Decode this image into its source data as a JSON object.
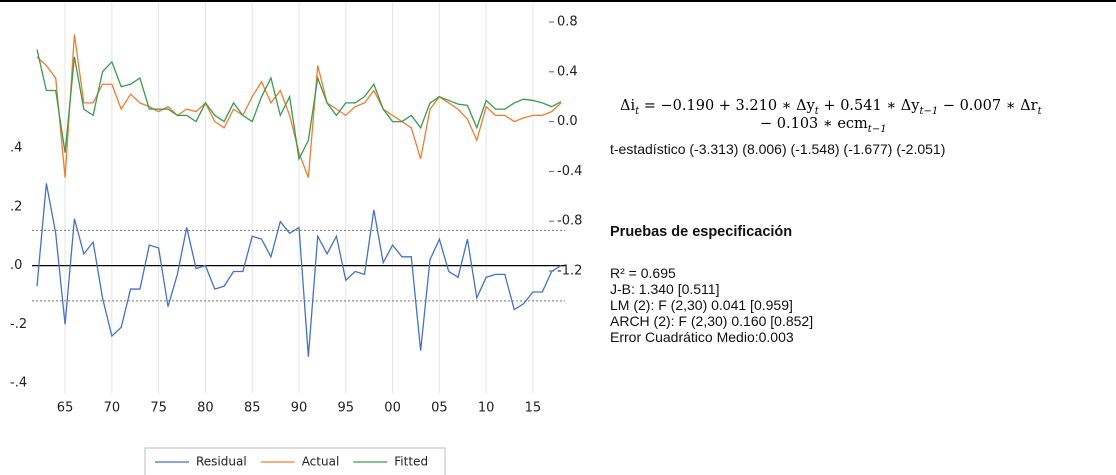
{
  "chart_data": {
    "type": "line",
    "x": [
      1962,
      1963,
      1964,
      1965,
      1966,
      1967,
      1968,
      1969,
      1970,
      1971,
      1972,
      1973,
      1974,
      1975,
      1976,
      1977,
      1978,
      1979,
      1980,
      1981,
      1982,
      1983,
      1984,
      1985,
      1986,
      1987,
      1988,
      1989,
      1990,
      1991,
      1992,
      1993,
      1994,
      1995,
      1996,
      1997,
      1998,
      1999,
      2000,
      2001,
      2002,
      2003,
      2004,
      2005,
      2006,
      2007,
      2008,
      2009,
      2010,
      2011,
      2012,
      2013,
      2014,
      2015,
      2016,
      2017,
      2018
    ],
    "xlim": [
      1962,
      2018
    ],
    "xticks": [
      {
        "value": 1965,
        "label": "65"
      },
      {
        "value": 1970,
        "label": "70"
      },
      {
        "value": 1975,
        "label": "75"
      },
      {
        "value": 1980,
        "label": "80"
      },
      {
        "value": 1985,
        "label": "85"
      },
      {
        "value": 1990,
        "label": "90"
      },
      {
        "value": 1995,
        "label": "95"
      },
      {
        "value": 2000,
        "label": "00"
      },
      {
        "value": 2005,
        "label": "05"
      },
      {
        "value": 2010,
        "label": "10"
      },
      {
        "value": 2015,
        "label": "15"
      }
    ],
    "ylim": [
      -0.4,
      0.83
    ],
    "yticks": [
      {
        "value": 0.4,
        "label": ".4"
      },
      {
        "value": 0.2,
        "label": ".2"
      },
      {
        "value": 0,
        "label": ".0"
      },
      {
        "value": -0.2,
        "label": "-.2"
      },
      {
        "value": -0.4,
        "label": "-.4"
      }
    ],
    "y2lim": [
      -2.1,
      0.8
    ],
    "y2ticks": [
      0.8,
      0.4,
      {
        "value": 0,
        "label": "0.0"
      },
      -0.4,
      -0.8,
      -1.2
    ],
    "reference_lines": [
      0.12,
      0,
      -0.12
    ],
    "grid": true,
    "legend": "bottom",
    "series": [
      {
        "name": "Residual",
        "color": "#4472c4",
        "values": [
          -0.07,
          0.28,
          0.11,
          -0.2,
          0.16,
          0.04,
          0.08,
          -0.11,
          -0.24,
          -0.21,
          -0.08,
          -0.08,
          0.07,
          0.06,
          -0.14,
          -0.03,
          0.13,
          -0.01,
          0.0,
          -0.08,
          -0.07,
          -0.02,
          -0.02,
          0.1,
          0.09,
          0.03,
          0.15,
          0.11,
          0.13,
          -0.31,
          0.1,
          0.04,
          0.1,
          -0.05,
          -0.02,
          -0.03,
          0.19,
          0.01,
          0.07,
          0.03,
          0.03,
          -0.29,
          0.02,
          0.09,
          -0.02,
          -0.04,
          0.09,
          -0.11,
          -0.04,
          -0.03,
          -0.03,
          -0.15,
          -0.13,
          -0.09,
          -0.09,
          -0.02,
          0.0
        ]
      },
      {
        "name": "Actual",
        "color": "#ed7d31",
        "axis": "y2",
        "values": [
          0.52,
          0.45,
          0.35,
          -0.45,
          0.7,
          0.15,
          0.15,
          0.3,
          0.3,
          0.1,
          0.22,
          0.15,
          0.12,
          0.08,
          0.12,
          0.05,
          0.1,
          0.08,
          0.15,
          0.0,
          -0.05,
          0.1,
          0.05,
          0.2,
          0.32,
          0.15,
          0.25,
          0.05,
          -0.25,
          -0.45,
          0.45,
          0.15,
          0.1,
          0.05,
          0.12,
          0.15,
          0.25,
          0.1,
          0.05,
          0.0,
          -0.05,
          -0.3,
          0.1,
          0.2,
          0.15,
          0.1,
          0.02,
          -0.15,
          0.12,
          0.05,
          0.05,
          0.0,
          0.03,
          0.05,
          0.05,
          0.08,
          0.15
        ]
      },
      {
        "name": "Fitted",
        "color": "#3a9a4f",
        "axis": "y2",
        "values": [
          0.58,
          0.25,
          0.25,
          -0.25,
          0.52,
          0.1,
          0.05,
          0.4,
          0.48,
          0.28,
          0.3,
          0.35,
          0.1,
          0.1,
          0.1,
          0.05,
          0.05,
          0.0,
          0.15,
          0.05,
          0.0,
          0.15,
          0.05,
          0.0,
          0.2,
          0.35,
          0.05,
          0.2,
          -0.3,
          -0.15,
          0.35,
          0.15,
          0.05,
          0.15,
          0.15,
          0.2,
          0.3,
          0.1,
          0.0,
          0.0,
          0.05,
          -0.05,
          0.15,
          0.2,
          0.17,
          0.14,
          0.13,
          -0.05,
          0.17,
          0.1,
          0.1,
          0.15,
          0.18,
          0.17,
          0.15,
          0.12,
          0.16
        ]
      }
    ]
  },
  "equation": {
    "lines": [
      [
        {
          "text": "Δi",
          "sub": "t"
        },
        {
          "text": " = −0.190 + 3.210 ∗ Δy",
          "sub": "t"
        },
        {
          "text": " + 0.541 ∗ Δy",
          "sub": "t−1"
        },
        {
          "text": " −  0.007 ∗ Δr",
          "sub": "t"
        }
      ],
      [
        {
          "text": "− 0.103 ∗ ecm",
          "sub": "t−1"
        }
      ]
    ]
  },
  "t_stats": "t-estadístico (-3.313) (8.006) (-1.548) (-1.677) (-2.051)",
  "tests": {
    "title": "Pruebas de especificación",
    "items": [
      "R² = 0.695",
      "J-B: 1.340 [0.511]",
      "LM (2): F (2,30) 0.041 [0.959]",
      "ARCH (2): F (2,30) 0.160 [0.852]",
      "Error Cuadrático Medio:0.003"
    ]
  }
}
